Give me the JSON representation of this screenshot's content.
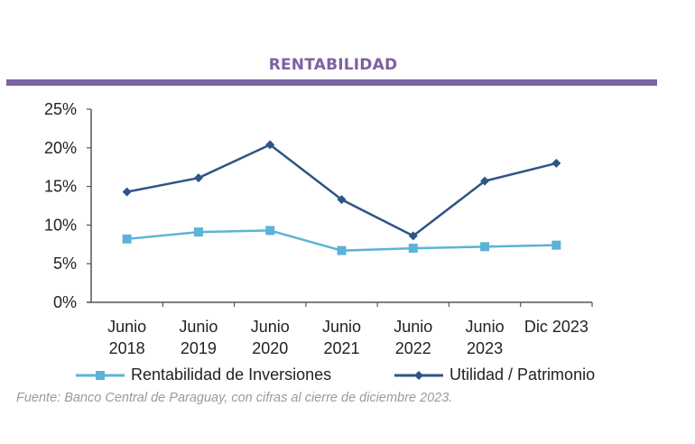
{
  "header": {
    "title": "RENTABILIDAD",
    "accent_color": "#7b62a3"
  },
  "chart_data": {
    "type": "line",
    "title": "RENTABILIDAD",
    "xlabel": "",
    "ylabel": "",
    "categories": [
      [
        "Junio",
        "2018"
      ],
      [
        "Junio",
        "2019"
      ],
      [
        "Junio",
        "2020"
      ],
      [
        "Junio",
        "2021"
      ],
      [
        "Junio",
        "2022"
      ],
      [
        "Junio",
        "2023"
      ],
      [
        "Dic 2023",
        ""
      ]
    ],
    "y_ticks": [
      "0%",
      "5%",
      "10%",
      "15%",
      "20%",
      "25%"
    ],
    "ylim": [
      0,
      25
    ],
    "grid": false,
    "legend_position": "bottom",
    "series": [
      {
        "name": "Rentabilidad de Inversiones",
        "color": "#5bb3d8",
        "marker": "square",
        "values": [
          8.2,
          9.1,
          9.3,
          6.7,
          7.0,
          7.2,
          7.4
        ]
      },
      {
        "name": "Utilidad / Patrimonio",
        "color": "#2f5486",
        "marker": "diamond",
        "values": [
          14.3,
          16.1,
          20.4,
          13.3,
          8.6,
          15.7,
          18.0
        ]
      }
    ]
  },
  "source": "Fuente: Banco Central de Paraguay, con cifras al cierre de diciembre 2023."
}
